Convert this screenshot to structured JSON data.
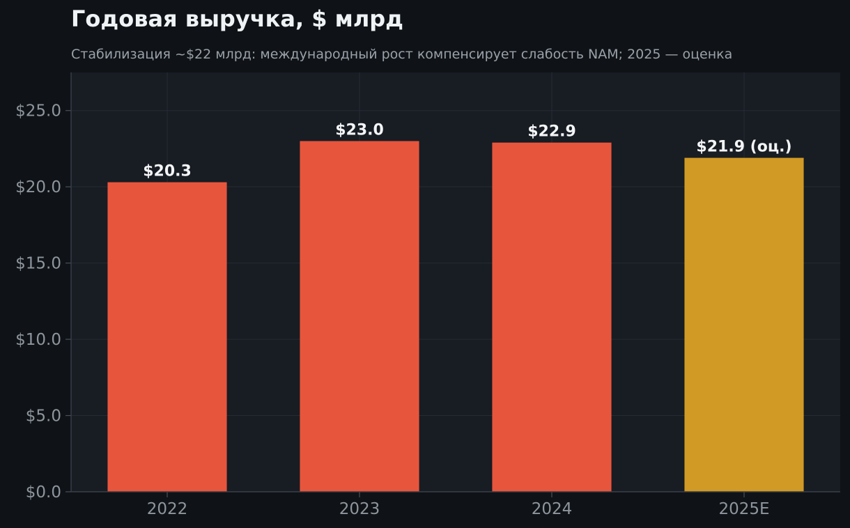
{
  "chart_data": {
    "type": "bar",
    "title": "Годовая выручка, $ млрд",
    "subtitle": "Стабилизация ~$22 млрд: международный рост компенсирует слабость NAM; 2025 — оценка",
    "xlabel": "",
    "ylabel": "",
    "categories": [
      "2022",
      "2023",
      "2024",
      "2025E"
    ],
    "values": [
      20.3,
      23.0,
      22.9,
      21.9
    ],
    "data_labels": [
      "$20.3",
      "$23.0",
      "$22.9",
      "$21.9 (оц.)"
    ],
    "ylim": [
      0,
      27.5
    ],
    "yticks": [
      0,
      5,
      10,
      15,
      20,
      25
    ],
    "ytick_labels": [
      "$0.0",
      "$5.0",
      "$10.0",
      "$15.0",
      "$20.0",
      "$25.0"
    ],
    "grid": true,
    "legend": "none",
    "colors": {
      "actual": "#e8553d",
      "estimate": "#d19a24",
      "plot_background": "#181c23",
      "page_background": "#0f1317",
      "grid": "#262c35"
    },
    "bar_colors": [
      "actual",
      "actual",
      "actual",
      "estimate"
    ]
  }
}
